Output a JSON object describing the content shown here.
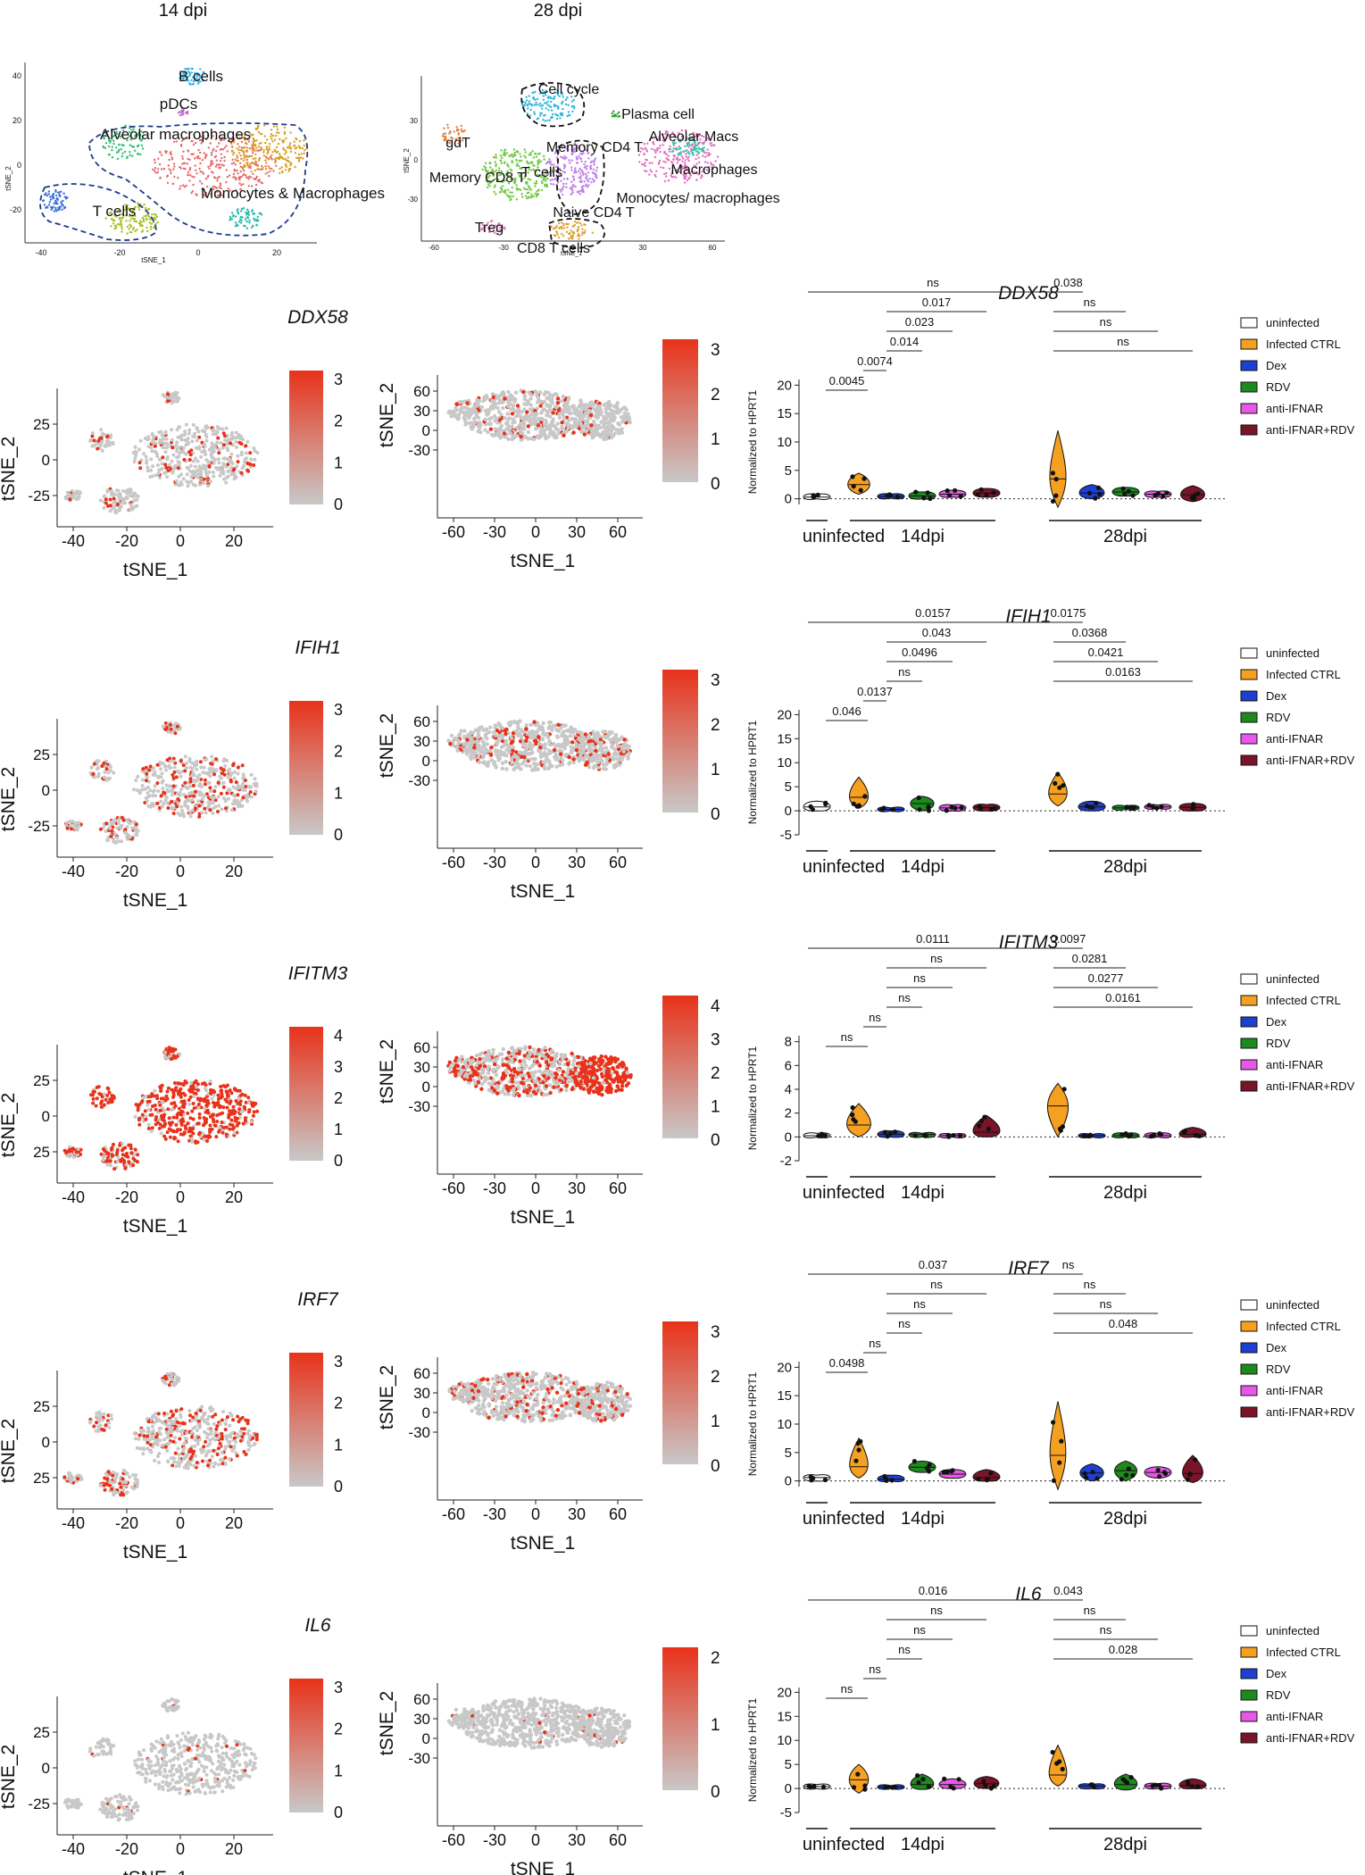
{
  "header": {
    "left": "14 dpi",
    "right": "28 dpi"
  },
  "overview": {
    "left": {
      "axis_x": "tSNE_1",
      "axis_y": "tSNE_2",
      "x_ticks": [
        "-40",
        "-20",
        "0",
        "20"
      ],
      "y_ticks": [
        "40",
        "20",
        "0",
        "-20"
      ],
      "clusters": [
        "B cells",
        "pDCs",
        "Alveolar macrophages",
        "Monocytes & Macrophages",
        "T cells"
      ]
    },
    "right": {
      "axis_x": "tSNE_1",
      "axis_y": "tSNE_2",
      "x_ticks": [
        "-60",
        "-30",
        "0",
        "30",
        "60"
      ],
      "y_ticks": [
        "30",
        "0",
        "-30"
      ],
      "clusters": [
        "Cell cycle",
        "Plasma cell",
        "gdT",
        "Memory CD4 T",
        "Alveolar Macs",
        "Macrophages",
        "Memory CD8 T",
        "T cells",
        "Monocytes/ macrophages",
        "Naive CD4 T",
        "Treg",
        "CD8 T cells"
      ]
    }
  },
  "colors": {
    "low": "#c8c8c8",
    "high": "#e8321a",
    "violin_ctrl": "#f5a020",
    "dex": "#1f3fd0",
    "rdv": "#1d8a1d",
    "ifnar": "#e858e8",
    "combo": "#7a1428"
  },
  "legend": [
    {
      "label": "uninfected",
      "color": "#ffffff"
    },
    {
      "label": "Infected CTRL",
      "color": "#f5a020"
    },
    {
      "label": "Dex",
      "color": "#1f3fd0"
    },
    {
      "label": "RDV",
      "color": "#1d8a1d"
    },
    {
      "label": "anti-IFNAR",
      "color": "#e858e8"
    },
    {
      "label": "anti-IFNAR+RDV",
      "color": "#7a1428"
    }
  ],
  "violin_labels": {
    "ylabel": "Normalized to HPRT1",
    "group_uninfected": "uninfected",
    "group_14": "14dpi",
    "group_28": "28dpi"
  },
  "tsne_axes": {
    "x": "tSNE_1",
    "y": "tSNE_2"
  },
  "chart_data": [
    {
      "type": "scatter",
      "title": "DDX58",
      "tsne_14": {
        "xticks": [
          "-40",
          "-20",
          "0",
          "20"
        ],
        "yticks": [
          "25",
          "0",
          "-25"
        ],
        "scale": [
          "3",
          "2",
          "1",
          "0"
        ]
      },
      "tsne_28": {
        "xticks": [
          "-60",
          "-30",
          "0",
          "30",
          "60"
        ],
        "yticks": [
          "60",
          "30",
          "0",
          "-30"
        ],
        "scale": [
          "3",
          "2",
          "1",
          "0"
        ]
      },
      "violin": {
        "yticks": [
          "20",
          "15",
          "10",
          "5",
          "0"
        ],
        "ylim": [
          -1,
          21
        ],
        "medians": [
          0.3,
          2.5,
          0.4,
          0.5,
          0.8,
          1.0,
          3.5,
          1.0,
          1.2,
          0.8,
          0.7
        ],
        "ranges": [
          [
            0,
            0.8
          ],
          [
            0.8,
            4.5
          ],
          [
            0.1,
            0.8
          ],
          [
            0,
            1.2
          ],
          [
            0.3,
            1.5
          ],
          [
            0.3,
            1.8
          ],
          [
            -1.5,
            12
          ],
          [
            0,
            2.5
          ],
          [
            0.5,
            2
          ],
          [
            0.3,
            1.3
          ],
          [
            -0.5,
            2.3
          ]
        ],
        "stats": [
          "ns",
          "0.017",
          "0.023",
          "0.014",
          "0.0074",
          "0.0045",
          "0.038",
          "ns",
          "ns",
          "ns"
        ]
      }
    },
    {
      "type": "scatter",
      "title": "IFIH1",
      "tsne_14": {
        "xticks": [
          "-40",
          "-20",
          "0",
          "20"
        ],
        "yticks": [
          "25",
          "0",
          "-25"
        ],
        "scale": [
          "3",
          "2",
          "1",
          "0"
        ]
      },
      "tsne_28": {
        "xticks": [
          "-60",
          "-30",
          "0",
          "30",
          "60"
        ],
        "yticks": [
          "60",
          "30",
          "0",
          "-30"
        ],
        "scale": [
          "3",
          "2",
          "1",
          "0"
        ]
      },
      "violin": {
        "yticks": [
          "20",
          "15",
          "10",
          "5",
          "0",
          "-5"
        ],
        "ylim": [
          -5,
          21
        ],
        "medians": [
          0.8,
          2.8,
          0.3,
          1.5,
          0.6,
          0.7,
          3.5,
          0.8,
          0.6,
          0.8,
          0.7
        ],
        "ranges": [
          [
            0,
            2
          ],
          [
            0.5,
            7
          ],
          [
            0,
            0.6
          ],
          [
            0,
            3
          ],
          [
            0,
            1.2
          ],
          [
            0,
            1.3
          ],
          [
            1,
            8
          ],
          [
            0,
            2
          ],
          [
            0.3,
            1
          ],
          [
            0.5,
            1.2
          ],
          [
            0,
            1.5
          ]
        ],
        "stats": [
          "0.0157",
          "0.043",
          "0.0496",
          "ns",
          "0.0137",
          "0.046",
          "0.0175",
          "0.0368",
          "0.0421",
          "0.0163"
        ]
      }
    },
    {
      "type": "scatter",
      "title": "IFITM3",
      "tsne_14": {
        "xticks": [
          "-40",
          "-20",
          "0",
          "20"
        ],
        "yticks": [
          "25",
          "0",
          "25"
        ],
        "scale": [
          "4",
          "3",
          "2",
          "1",
          "0"
        ]
      },
      "tsne_28": {
        "xticks": [
          "-60",
          "-30",
          "0",
          "30",
          "60"
        ],
        "yticks": [
          "60",
          "30",
          "0",
          "-30"
        ],
        "scale": [
          "4",
          "3",
          "2",
          "1",
          "0"
        ]
      },
      "violin": {
        "yticks": [
          "8",
          "6",
          "4",
          "2",
          "0",
          "-2"
        ],
        "ylim": [
          -2,
          8.5
        ],
        "medians": [
          0.1,
          1.0,
          0.2,
          0.2,
          0.1,
          0.4,
          2.6,
          0.1,
          0.1,
          0.1,
          0.2
        ],
        "ranges": [
          [
            0,
            0.3
          ],
          [
            0,
            2.8
          ],
          [
            0,
            0.5
          ],
          [
            0,
            0.3
          ],
          [
            0,
            0.2
          ],
          [
            0,
            1.8
          ],
          [
            0,
            4.5
          ],
          [
            0,
            0.2
          ],
          [
            0,
            0.3
          ],
          [
            0,
            0.3
          ],
          [
            0,
            0.8
          ]
        ],
        "stats": [
          "0.0111",
          "ns",
          "ns",
          "ns",
          "ns",
          "ns",
          "0.0097",
          "0.0281",
          "0.0277",
          "0.0161"
        ]
      }
    },
    {
      "type": "scatter",
      "title": "IRF7",
      "tsne_14": {
        "xticks": [
          "-40",
          "-20",
          "0",
          "20"
        ],
        "yticks": [
          "25",
          "0",
          "25"
        ],
        "scale": [
          "3",
          "2",
          "1",
          "0"
        ]
      },
      "tsne_28": {
        "xticks": [
          "-60",
          "-30",
          "0",
          "30",
          "60"
        ],
        "yticks": [
          "60",
          "30",
          "0",
          "-30"
        ],
        "scale": [
          "3",
          "2",
          "1",
          "0"
        ]
      },
      "violin": {
        "yticks": [
          "20",
          "15",
          "10",
          "5",
          "0"
        ],
        "ylim": [
          -1,
          21
        ],
        "medians": [
          0.6,
          2.5,
          0.3,
          2.4,
          1.2,
          0.6,
          4.5,
          1.4,
          1.8,
          1.5,
          1.3
        ],
        "ranges": [
          [
            0,
            1
          ],
          [
            0.5,
            7.5
          ],
          [
            0,
            1
          ],
          [
            1.5,
            3.5
          ],
          [
            0.5,
            2
          ],
          [
            0,
            2
          ],
          [
            -1.5,
            14
          ],
          [
            0,
            3
          ],
          [
            0,
            3.5
          ],
          [
            0.5,
            2.5
          ],
          [
            -0.3,
            4.5
          ]
        ],
        "stats": [
          "0.037",
          "ns",
          "ns",
          "ns",
          "ns",
          "0.0498",
          "ns",
          "ns",
          "ns",
          "0.048"
        ]
      }
    },
    {
      "type": "scatter",
      "title": "IL6",
      "tsne_14": {
        "xticks": [
          "-40",
          "-20",
          "0",
          "20"
        ],
        "yticks": [
          "25",
          "0",
          "-25"
        ],
        "scale": [
          "3",
          "2",
          "1",
          "0"
        ]
      },
      "tsne_28": {
        "xticks": [
          "-60",
          "-30",
          "0",
          "30",
          "60"
        ],
        "yticks": [
          "60",
          "30",
          "0",
          "-30"
        ],
        "scale": [
          "2",
          "1",
          "0"
        ]
      },
      "violin": {
        "yticks": [
          "20",
          "15",
          "10",
          "5",
          "0",
          "-5"
        ],
        "ylim": [
          -5,
          21
        ],
        "medians": [
          0.4,
          1.8,
          0.3,
          0.8,
          0.8,
          1.0,
          2.8,
          0.5,
          0.8,
          0.5,
          0.6
        ],
        "ranges": [
          [
            0,
            0.8
          ],
          [
            -1,
            5
          ],
          [
            0,
            0.6
          ],
          [
            -0.2,
            3
          ],
          [
            0,
            2
          ],
          [
            0,
            2.5
          ],
          [
            0.5,
            9
          ],
          [
            0,
            0.8
          ],
          [
            -0.3,
            3
          ],
          [
            0,
            1
          ],
          [
            0,
            2
          ]
        ],
        "stats": [
          "0.016",
          "ns",
          "ns",
          "ns",
          "ns",
          "ns",
          "0.043",
          "ns",
          "ns",
          "0.028"
        ]
      }
    }
  ]
}
